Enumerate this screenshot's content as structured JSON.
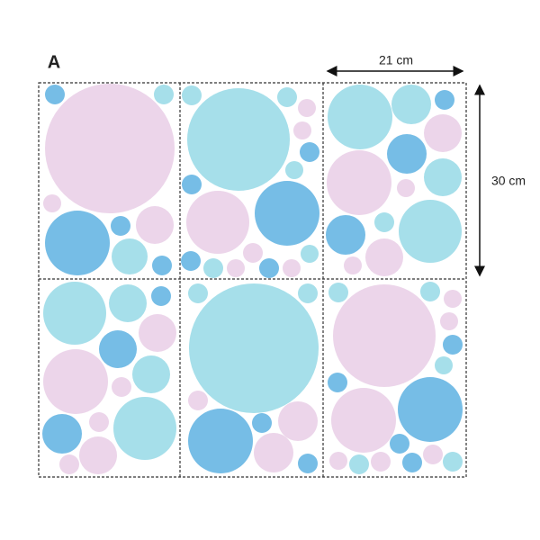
{
  "label": "A",
  "width_label": "21 cm",
  "height_label": "30 cm"
}
